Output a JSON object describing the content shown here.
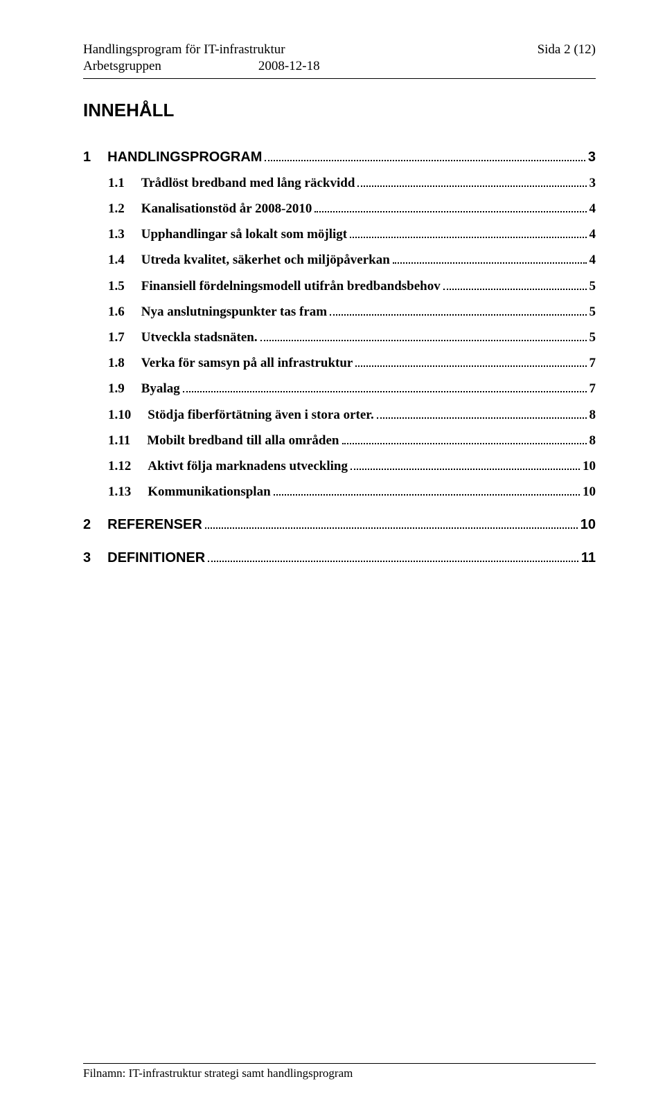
{
  "header": {
    "title_left": "Handlingsprogram för IT-infrastruktur",
    "title_right": "Sida 2 (12)",
    "group": "Arbetsgruppen",
    "date": "2008-12-18"
  },
  "main_title": "INNEHÅLL",
  "toc": [
    {
      "level": 1,
      "num": "1",
      "label": "HANDLINGSPROGRAM",
      "page": "3"
    },
    {
      "level": 2,
      "num": "1.1",
      "label": "Trådlöst bredband med lång räckvidd",
      "page": "3"
    },
    {
      "level": 2,
      "num": "1.2",
      "label": "Kanalisationstöd år 2008-2010",
      "page": "4"
    },
    {
      "level": 2,
      "num": "1.3",
      "label": "Upphandlingar så lokalt som möjligt",
      "page": "4"
    },
    {
      "level": 2,
      "num": "1.4",
      "label": "Utreda kvalitet, säkerhet och miljöpåverkan",
      "page": "4"
    },
    {
      "level": 2,
      "num": "1.5",
      "label": "Finansiell fördelningsmodell utifrån bredbandsbehov",
      "page": "5"
    },
    {
      "level": 2,
      "num": "1.6",
      "label": "Nya anslutningspunkter tas fram",
      "page": "5"
    },
    {
      "level": 2,
      "num": "1.7",
      "label": "Utveckla stadsnäten.",
      "page": "5"
    },
    {
      "level": 2,
      "num": "1.8",
      "label": "Verka för samsyn på all infrastruktur",
      "page": "7"
    },
    {
      "level": 2,
      "num": "1.9",
      "label": "Byalag",
      "page": "7"
    },
    {
      "level": 2,
      "num": "1.10",
      "label": "Stödja fiberförtätning även i stora orter.",
      "page": "8"
    },
    {
      "level": 2,
      "num": "1.11",
      "label": "Mobilt bredband till alla områden",
      "page": "8"
    },
    {
      "level": 2,
      "num": "1.12",
      "label": "Aktivt följa marknadens utveckling",
      "page": "10"
    },
    {
      "level": 2,
      "num": "1.13",
      "label": "Kommunikationsplan",
      "page": "10"
    },
    {
      "level": 1,
      "num": "2",
      "label": "REFERENSER",
      "page": "10"
    },
    {
      "level": 1,
      "num": "3",
      "label": "DEFINITIONER",
      "page": "11"
    }
  ],
  "footer": {
    "text": "Filnamn: IT-infrastruktur strategi samt handlingsprogram"
  }
}
